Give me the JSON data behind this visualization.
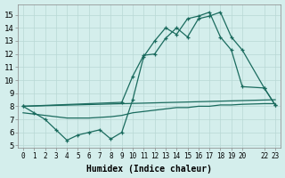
{
  "background_color": "#d4eeec",
  "grid_color": "#b8d8d5",
  "line_color": "#1a6b5e",
  "xlabel": "Humidex (Indice chaleur)",
  "xlim": [
    -0.5,
    23.5
  ],
  "ylim": [
    4.8,
    15.8
  ],
  "yticks": [
    5,
    6,
    7,
    8,
    9,
    10,
    11,
    12,
    13,
    14,
    15
  ],
  "xticks": [
    0,
    1,
    2,
    3,
    4,
    5,
    6,
    7,
    8,
    9,
    10,
    11,
    12,
    13,
    14,
    15,
    16,
    17,
    18,
    19,
    20,
    22,
    23
  ],
  "xtick_labels": [
    "0",
    "1",
    "2",
    "3",
    "4",
    "5",
    "6",
    "7",
    "8",
    "9",
    "10",
    "11",
    "12",
    "13",
    "14",
    "15",
    "16",
    "17",
    "18",
    "19",
    "20",
    "22",
    "23"
  ],
  "line1_x": [
    0,
    1,
    2,
    3,
    4,
    5,
    6,
    7,
    8,
    9,
    10,
    11,
    12,
    13,
    14,
    15,
    16,
    17,
    18,
    19,
    20,
    22,
    23
  ],
  "line1_y": [
    8.0,
    7.5,
    7.0,
    6.2,
    5.4,
    5.8,
    6.0,
    6.2,
    5.5,
    6.0,
    8.5,
    11.8,
    13.0,
    14.0,
    13.5,
    14.7,
    14.9,
    15.2,
    13.3,
    12.3,
    9.5,
    9.4,
    8.1
  ],
  "line2_x": [
    0,
    9,
    10,
    11,
    12,
    13,
    14,
    15,
    16,
    17,
    18,
    19,
    20,
    22,
    23
  ],
  "line2_y": [
    8.0,
    8.3,
    10.3,
    11.9,
    12.0,
    13.2,
    14.0,
    13.3,
    14.7,
    14.9,
    15.2,
    13.3,
    12.3,
    9.4,
    8.1
  ],
  "line3_x": [
    0,
    23
  ],
  "line3_y": [
    8.0,
    8.5
  ],
  "line4_x": [
    0,
    1,
    2,
    3,
    4,
    5,
    6,
    7,
    8,
    9,
    10,
    11,
    12,
    13,
    14,
    15,
    16,
    17,
    18,
    19,
    20,
    22,
    23
  ],
  "line4_y": [
    7.5,
    7.4,
    7.3,
    7.2,
    7.1,
    7.1,
    7.1,
    7.15,
    7.2,
    7.3,
    7.5,
    7.6,
    7.7,
    7.8,
    7.9,
    7.9,
    8.0,
    8.0,
    8.1,
    8.1,
    8.15,
    8.2,
    8.2
  ]
}
